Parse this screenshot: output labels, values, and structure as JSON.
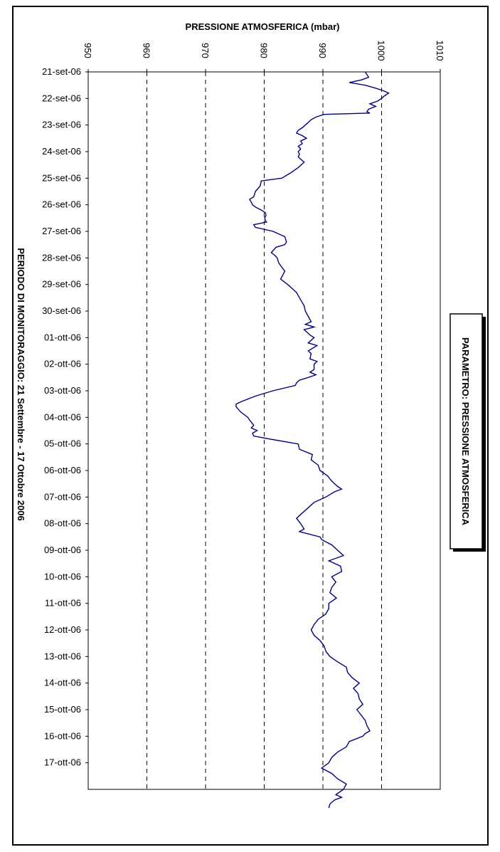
{
  "chart_data": {
    "type": "line",
    "title": "PRESSIONE ATMOSFERICA (mbar)",
    "subtitle": "PARAMETRO: PRESSIONE ATMOSFERICA",
    "period_label": "PERIODO DI MONITORAGGIO: 21 Settembre - 17 Ottobre 2006",
    "xlabel": "",
    "ylabel": "",
    "pressure_axis": {
      "min": 950,
      "max": 1010,
      "ticks": [
        "950",
        "960",
        "970",
        "980",
        "990",
        "1000",
        "1010"
      ],
      "gridlines": [
        960,
        970,
        980,
        990,
        1000
      ],
      "grid": "dashed"
    },
    "date_axis": {
      "start": "21-set-06",
      "end_day_index": 27,
      "ticks": [
        "21-set-06",
        "22-set-06",
        "23-set-06",
        "24-set-06",
        "25-set-06",
        "26-set-06",
        "27-set-06",
        "28-set-06",
        "29-set-06",
        "30-set-06",
        "01-ott-06",
        "02-ott-06",
        "03-ott-06",
        "04-ott-06",
        "05-ott-06",
        "06-ott-06",
        "07-ott-06",
        "08-ott-06",
        "09-ott-06",
        "10-ott-06",
        "11-ott-06",
        "12-ott-06",
        "13-ott-06",
        "14-ott-06",
        "15-ott-06",
        "16-ott-06",
        "17-ott-06"
      ]
    },
    "orientation": "rotated-90",
    "line_color": "#000080",
    "series": [
      {
        "name": "",
        "points": [
          [
            0,
            997.2
          ],
          [
            0.1,
            997.5
          ],
          [
            0.2,
            997.8
          ],
          [
            0.3,
            996.6
          ],
          [
            0.4,
            994.5
          ],
          [
            0.5,
            997.2
          ],
          [
            0.6,
            998.8
          ],
          [
            0.7,
            1000.2
          ],
          [
            0.8,
            1001.2
          ],
          [
            0.9,
            1000.5
          ],
          [
            1.0,
            1000.0
          ],
          [
            1.1,
            999.3
          ],
          [
            1.2,
            998.0
          ],
          [
            1.3,
            999.0
          ],
          [
            1.4,
            997.8
          ],
          [
            1.5,
            997.5
          ],
          [
            1.55,
            998.0
          ],
          [
            1.6,
            990.2
          ],
          [
            1.7,
            988.8
          ],
          [
            1.8,
            988.0
          ],
          [
            1.9,
            987.5
          ],
          [
            2.0,
            987.0
          ],
          [
            2.1,
            986.5
          ],
          [
            2.2,
            985.8
          ],
          [
            2.3,
            985.5
          ],
          [
            2.4,
            986.5
          ],
          [
            2.5,
            987.2
          ],
          [
            2.6,
            986.2
          ],
          [
            2.7,
            986.5
          ],
          [
            2.8,
            985.8
          ],
          [
            2.9,
            986.2
          ],
          [
            3.0,
            985.8
          ],
          [
            3.1,
            986.0
          ],
          [
            3.2,
            985.8
          ],
          [
            3.4,
            986.8
          ],
          [
            3.6,
            985.8
          ],
          [
            3.8,
            984.5
          ],
          [
            4.0,
            983.0
          ],
          [
            4.1,
            979.5
          ],
          [
            4.3,
            979.3
          ],
          [
            4.5,
            978.5
          ],
          [
            4.7,
            978.2
          ],
          [
            4.8,
            977.5
          ],
          [
            4.9,
            977.8
          ],
          [
            5.0,
            978.0
          ],
          [
            5.1,
            978.6
          ],
          [
            5.2,
            979.5
          ],
          [
            5.3,
            980.2
          ],
          [
            5.4,
            980.3
          ],
          [
            5.5,
            980.1
          ],
          [
            5.6,
            980.2
          ],
          [
            5.65,
            980.4
          ],
          [
            5.75,
            978.2
          ],
          [
            5.85,
            978.5
          ],
          [
            6.0,
            981.5
          ],
          [
            6.2,
            983.5
          ],
          [
            6.4,
            983.8
          ],
          [
            6.5,
            983.5
          ],
          [
            6.6,
            982.0
          ],
          [
            6.8,
            981.2
          ],
          [
            6.9,
            981.8
          ],
          [
            7.0,
            982.2
          ],
          [
            7.2,
            982.5
          ],
          [
            7.5,
            983.5
          ],
          [
            7.8,
            982.8
          ],
          [
            8.0,
            984.0
          ],
          [
            8.3,
            985.5
          ],
          [
            8.5,
            986.0
          ],
          [
            8.8,
            986.8
          ],
          [
            9.0,
            987.0
          ],
          [
            9.2,
            987.5
          ],
          [
            9.4,
            988.0
          ],
          [
            9.5,
            987.0
          ],
          [
            9.6,
            988.5
          ],
          [
            9.7,
            986.8
          ],
          [
            9.9,
            987.8
          ],
          [
            10.0,
            988.5
          ],
          [
            10.2,
            987.5
          ],
          [
            10.3,
            989.0
          ],
          [
            10.5,
            987.5
          ],
          [
            10.6,
            988.0
          ],
          [
            10.8,
            987.8
          ],
          [
            10.9,
            989.0
          ],
          [
            11.0,
            988.5
          ],
          [
            11.2,
            988.5
          ],
          [
            11.3,
            987.8
          ],
          [
            11.4,
            988.8
          ],
          [
            11.5,
            987.5
          ],
          [
            11.6,
            986.0
          ],
          [
            11.7,
            985.5
          ],
          [
            11.8,
            985.3
          ],
          [
            12.0,
            981.5
          ],
          [
            12.2,
            978.5
          ],
          [
            12.4,
            976.2
          ],
          [
            12.5,
            975.2
          ],
          [
            12.6,
            975.2
          ],
          [
            12.8,
            976.0
          ],
          [
            13.0,
            977.2
          ],
          [
            13.1,
            977.5
          ],
          [
            13.3,
            978.2
          ],
          [
            13.4,
            977.8
          ],
          [
            13.5,
            978.8
          ],
          [
            13.6,
            978.0
          ],
          [
            13.7,
            978.2
          ],
          [
            13.8,
            980.5
          ],
          [
            14.0,
            985.8
          ],
          [
            14.2,
            986.0
          ],
          [
            14.4,
            988.2
          ],
          [
            14.6,
            988.0
          ],
          [
            14.8,
            989.2
          ],
          [
            15.0,
            989.5
          ],
          [
            15.2,
            990.8
          ],
          [
            15.4,
            991.5
          ],
          [
            15.6,
            992.5
          ],
          [
            15.7,
            993.2
          ],
          [
            15.8,
            992.0
          ],
          [
            16.0,
            990.5
          ],
          [
            16.2,
            988.5
          ],
          [
            16.4,
            987.5
          ],
          [
            16.6,
            986.5
          ],
          [
            16.8,
            985.5
          ],
          [
            17.0,
            986.2
          ],
          [
            17.1,
            986.5
          ],
          [
            17.2,
            986.8
          ],
          [
            17.3,
            986.0
          ],
          [
            17.5,
            989.5
          ],
          [
            17.6,
            989.8
          ],
          [
            17.8,
            991.5
          ],
          [
            18.0,
            992.5
          ],
          [
            18.2,
            993.5
          ],
          [
            18.4,
            991.0
          ],
          [
            18.6,
            993.0
          ],
          [
            18.8,
            993.2
          ],
          [
            19.0,
            991.5
          ],
          [
            19.2,
            992.2
          ],
          [
            19.4,
            991.5
          ],
          [
            19.6,
            991.2
          ],
          [
            19.8,
            992.3
          ],
          [
            20.0,
            991.0
          ],
          [
            20.2,
            991.0
          ],
          [
            20.4,
            990.5
          ],
          [
            20.6,
            989.2
          ],
          [
            20.8,
            988.5
          ],
          [
            21.0,
            988.0
          ],
          [
            21.2,
            988.5
          ],
          [
            21.4,
            989.5
          ],
          [
            21.6,
            990.2
          ],
          [
            21.8,
            990.5
          ],
          [
            22.0,
            991.2
          ],
          [
            22.2,
            992.5
          ],
          [
            22.4,
            994.0
          ],
          [
            22.6,
            994.2
          ],
          [
            22.8,
            995.0
          ],
          [
            23.0,
            996.2
          ],
          [
            23.2,
            995.2
          ],
          [
            23.4,
            996.0
          ],
          [
            23.6,
            996.2
          ],
          [
            23.8,
            996.8
          ],
          [
            24.0,
            995.8
          ],
          [
            24.2,
            996.5
          ],
          [
            24.4,
            997.2
          ],
          [
            24.6,
            997.5
          ],
          [
            24.8,
            998.0
          ],
          [
            24.9,
            997.2
          ],
          [
            25.0,
            996.8
          ],
          [
            25.2,
            994.5
          ],
          [
            25.4,
            994.0
          ],
          [
            25.6,
            992.5
          ],
          [
            25.8,
            991.5
          ],
          [
            26.0,
            991.0
          ],
          [
            26.2,
            989.8
          ],
          [
            26.4,
            991.5
          ],
          [
            26.6,
            992.5
          ],
          [
            26.8,
            994.0
          ],
          [
            27.0,
            993.5
          ],
          [
            27.2,
            992.2
          ],
          [
            27.3,
            993.2
          ],
          [
            27.4,
            992.0
          ],
          [
            27.55,
            991.2
          ],
          [
            27.7,
            991.0
          ]
        ]
      }
    ]
  }
}
